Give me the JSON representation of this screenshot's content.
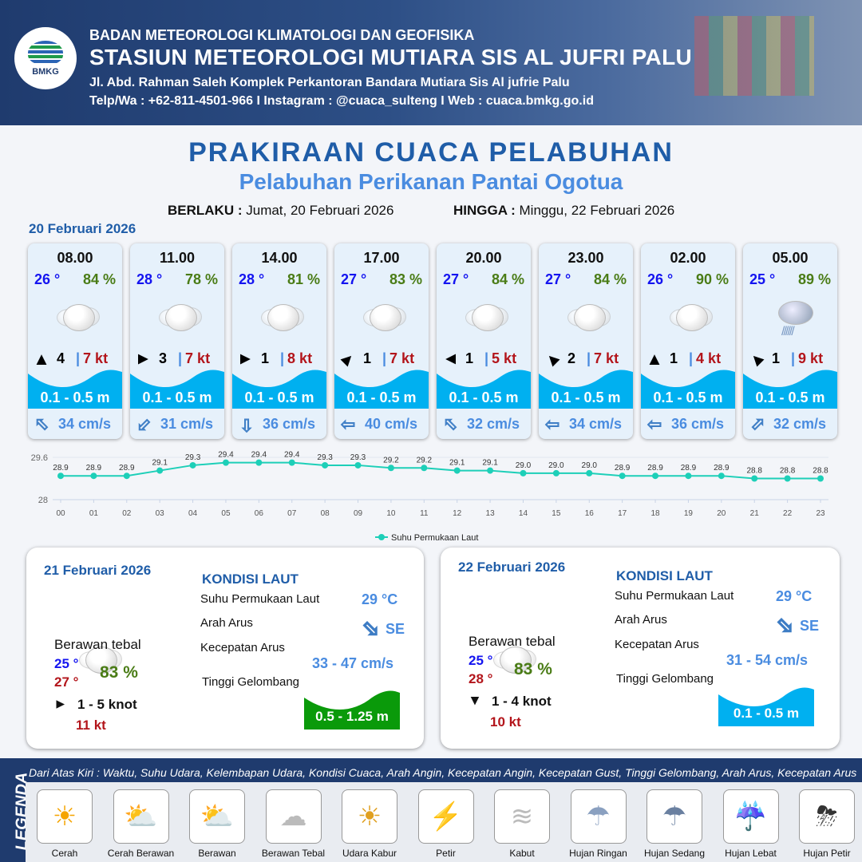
{
  "header": {
    "logo_text": "BMKG",
    "agency": "BADAN METEOROLOGI KLIMATOLOGI DAN GEOFISIKA",
    "station": "STASIUN METEOROLOGI MUTIARA SIS AL JUFRI PALU",
    "address": "Jl. Abd. Rahman Saleh Komplek Perkantoran Bandara Mutiara Sis Al jufrie Palu",
    "contact": "Telp/Wa : +62-811-4501-966  I  Instagram : @cuaca_sulteng  I  Web : cuaca.bmkg.go.id"
  },
  "title": "PRAKIRAAN CUACA PELABUHAN",
  "subtitle": "Pelabuhan Perikanan Pantai Ogotua",
  "validity": {
    "from_label": "BERLAKU :",
    "from": "Jumat, 20 Februari 2026",
    "to_label": "HINGGA :",
    "to": "Minggu, 22 Februari 2026"
  },
  "day1": {
    "date": "20 Februari 2026",
    "cards": [
      {
        "time": "08.00",
        "temp": "26 °",
        "hum": "84 %",
        "weather": "Berawan Tebal",
        "wind_dir_deg": 0,
        "wind": "4",
        "gust": "7 kt",
        "wave": "0.1 - 0.5 m",
        "current_dir_deg": 315,
        "current": "34 cm/s"
      },
      {
        "time": "11.00",
        "temp": "28 °",
        "hum": "78 %",
        "weather": "Berawan Tebal",
        "wind_dir_deg": 90,
        "wind": "3",
        "gust": "7 kt",
        "wave": "0.1 - 0.5 m",
        "current_dir_deg": 225,
        "current": "31 cm/s"
      },
      {
        "time": "14.00",
        "temp": "28 °",
        "hum": "81 %",
        "weather": "Berawan Tebal",
        "wind_dir_deg": 90,
        "wind": "1",
        "gust": "8 kt",
        "wave": "0.1 - 0.5 m",
        "current_dir_deg": 180,
        "current": "36 cm/s"
      },
      {
        "time": "17.00",
        "temp": "27 °",
        "hum": "83 %",
        "weather": "Berawan Tebal",
        "wind_dir_deg": 45,
        "wind": "1",
        "gust": "7 kt",
        "wave": "0.1 - 0.5 m",
        "current_dir_deg": 270,
        "current": "40 cm/s"
      },
      {
        "time": "20.00",
        "temp": "27 °",
        "hum": "84 %",
        "weather": "Berawan Tebal",
        "wind_dir_deg": 270,
        "wind": "1",
        "gust": "5 kt",
        "wave": "0.1 - 0.5 m",
        "current_dir_deg": 315,
        "current": "32 cm/s"
      },
      {
        "time": "23.00",
        "temp": "27 °",
        "hum": "84 %",
        "weather": "Berawan Tebal",
        "wind_dir_deg": 315,
        "wind": "2",
        "gust": "7 kt",
        "wave": "0.1 - 0.5 m",
        "current_dir_deg": 270,
        "current": "34 cm/s"
      },
      {
        "time": "02.00",
        "temp": "26 °",
        "hum": "90 %",
        "weather": "Berawan Tebal",
        "wind_dir_deg": 0,
        "wind": "1",
        "gust": "4 kt",
        "wave": "0.1 - 0.5 m",
        "current_dir_deg": 270,
        "current": "36 cm/s"
      },
      {
        "time": "05.00",
        "temp": "25 °",
        "hum": "89 %",
        "weather": "Hujan Ringan",
        "wind_dir_deg": 315,
        "wind": "1",
        "gust": "9 kt",
        "wave": "0.1 - 0.5 m",
        "current_dir_deg": 45,
        "current": "32 cm/s"
      }
    ]
  },
  "chart_data": {
    "type": "line",
    "x": [
      "00",
      "01",
      "02",
      "03",
      "04",
      "05",
      "06",
      "07",
      "08",
      "09",
      "10",
      "11",
      "12",
      "13",
      "14",
      "15",
      "16",
      "17",
      "18",
      "19",
      "20",
      "21",
      "22",
      "23"
    ],
    "series": [
      {
        "name": "Suhu Permukaan Laut",
        "values": [
          28.9,
          28.9,
          28.9,
          29.1,
          29.3,
          29.4,
          29.4,
          29.4,
          29.3,
          29.3,
          29.2,
          29.2,
          29.1,
          29.1,
          29.0,
          29.0,
          29.0,
          28.9,
          28.9,
          28.9,
          28.9,
          28.8,
          28.8,
          28.8
        ]
      }
    ],
    "ylim": [
      28,
      29.6
    ],
    "yticks": [
      "28",
      "29.6"
    ],
    "legend": "bottom",
    "color": "#1dcfb8"
  },
  "days": [
    {
      "date": "21 Februari 2026",
      "weather": "Berawan tebal",
      "tmin": "25 °",
      "tmax": "27 °",
      "hum": "83 %",
      "wind_dir_deg": 90,
      "wind": "1 - 5 knot",
      "gust": "11 kt",
      "sea_title": "KONDISI LAUT",
      "sst_label": "Suhu Permukaan Laut",
      "sst": "29 °C",
      "cur_dir_label": "Arah Arus",
      "cur_dir": "SE",
      "cur_speed_label": "Kecepatan Arus",
      "cur_speed": "33 - 47 cm/s",
      "wave_label": "Tinggi Gelombang",
      "wave": "0.5 - 1.25 m",
      "wave_color": "#0a9a0a"
    },
    {
      "date": "22 Februari 2026",
      "weather": "Berawan tebal",
      "tmin": "25 °",
      "tmax": "28 °",
      "hum": "83 %",
      "wind_dir_deg": 180,
      "wind": "1 - 4 knot",
      "gust": "10 kt",
      "sea_title": "KONDISI LAUT",
      "sst_label": "Suhu Permukaan Laut",
      "sst": "29 °C",
      "cur_dir_label": "Arah Arus",
      "cur_dir": "SE",
      "cur_speed_label": "Kecepatan Arus",
      "cur_speed": "31 - 54 cm/s",
      "wave_label": "Tinggi Gelombang",
      "wave": "0.1 - 0.5 m",
      "wave_color": "#00b0f0"
    }
  ],
  "legend": {
    "title": "LEGENDA",
    "description": "Dari Atas Kiri : Waktu, Suhu Udara, Kelembapan Udara, Kondisi Cuaca, Arah Angin, Kecepatan Angin, Kecepatan Gust, Tinggi Gelombang, Arah Arus, Kecepatan Arus",
    "items": [
      {
        "label": "Cerah",
        "icon": "sun-icon",
        "glyph": "☀"
      },
      {
        "label": "Cerah Berawan",
        "icon": "sun-cloud-icon",
        "glyph": "⛅"
      },
      {
        "label": "Berawan",
        "icon": "cloudy-icon",
        "glyph": "⛅"
      },
      {
        "label": "Berawan Tebal",
        "icon": "cloud-icon",
        "glyph": "☁"
      },
      {
        "label": "Udara Kabur",
        "icon": "haze-icon",
        "glyph": "☀"
      },
      {
        "label": "Petir",
        "icon": "lightning-icon",
        "glyph": "⚡"
      },
      {
        "label": "Kabut",
        "icon": "fog-icon",
        "glyph": "≋"
      },
      {
        "label": "Hujan Ringan",
        "icon": "light-rain-icon",
        "glyph": "☂"
      },
      {
        "label": "Hujan Sedang",
        "icon": "moderate-rain-icon",
        "glyph": "☂"
      },
      {
        "label": "Hujan Lebat",
        "icon": "heavy-rain-icon",
        "glyph": "☔"
      },
      {
        "label": "Hujan Petir",
        "icon": "thunderstorm-icon",
        "glyph": "⛈"
      }
    ]
  }
}
